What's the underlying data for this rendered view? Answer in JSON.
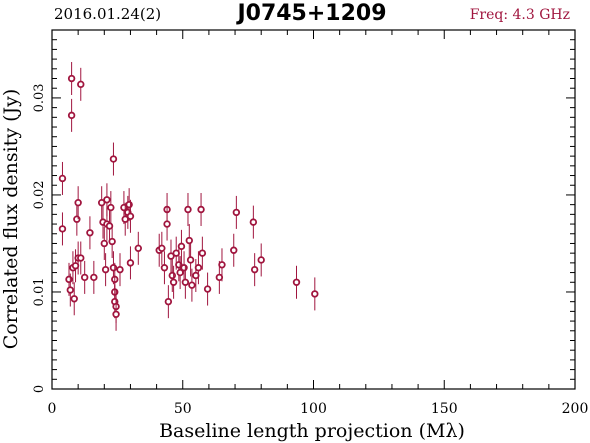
{
  "header": {
    "date": "2016.01.24(2)",
    "source": "J0745+1209",
    "freq": "Freq: 4.3 GHz"
  },
  "colors": {
    "points": "#a0153e",
    "axes": "#000000",
    "background": "#ffffff"
  },
  "chart_data": {
    "type": "scatter",
    "xlabel": "Baseline length projection (Mλ)",
    "ylabel": "Correlated flux density (Jy)",
    "xlim": [
      0,
      200
    ],
    "ylim": [
      0,
      0.037
    ],
    "xticks": [
      "0",
      "50",
      "100",
      "150",
      "200"
    ],
    "yticks": [
      "0",
      "0.01",
      "0.02",
      "0.03"
    ],
    "grid": false,
    "error_bar_jy": 0.0017,
    "points": [
      {
        "x": 4.0,
        "y": 0.0217
      },
      {
        "x": 4.0,
        "y": 0.0165
      },
      {
        "x": 6.5,
        "y": 0.0113
      },
      {
        "x": 7.0,
        "y": 0.0102
      },
      {
        "x": 7.5,
        "y": 0.032
      },
      {
        "x": 7.5,
        "y": 0.0282
      },
      {
        "x": 8.0,
        "y": 0.0125
      },
      {
        "x": 8.5,
        "y": 0.0093
      },
      {
        "x": 9.0,
        "y": 0.0127
      },
      {
        "x": 9.5,
        "y": 0.0175
      },
      {
        "x": 10.0,
        "y": 0.0192
      },
      {
        "x": 10.0,
        "y": 0.0135
      },
      {
        "x": 11.0,
        "y": 0.0314
      },
      {
        "x": 11.0,
        "y": 0.0135
      },
      {
        "x": 12.5,
        "y": 0.0115
      },
      {
        "x": 14.5,
        "y": 0.0161
      },
      {
        "x": 16.0,
        "y": 0.0115
      },
      {
        "x": 19.0,
        "y": 0.0192
      },
      {
        "x": 19.5,
        "y": 0.0172
      },
      {
        "x": 20.0,
        "y": 0.015
      },
      {
        "x": 20.5,
        "y": 0.0123
      },
      {
        "x": 21.0,
        "y": 0.0195
      },
      {
        "x": 21.0,
        "y": 0.017
      },
      {
        "x": 22.0,
        "y": 0.0168
      },
      {
        "x": 22.5,
        "y": 0.0187
      },
      {
        "x": 23.0,
        "y": 0.0152
      },
      {
        "x": 23.5,
        "y": 0.0237
      },
      {
        "x": 23.5,
        "y": 0.0125
      },
      {
        "x": 24.0,
        "y": 0.0113
      },
      {
        "x": 24.0,
        "y": 0.01
      },
      {
        "x": 24.0,
        "y": 0.009
      },
      {
        "x": 24.5,
        "y": 0.0085
      },
      {
        "x": 24.5,
        "y": 0.0077
      },
      {
        "x": 26.0,
        "y": 0.0123
      },
      {
        "x": 27.5,
        "y": 0.0187
      },
      {
        "x": 28.0,
        "y": 0.0175
      },
      {
        "x": 29.0,
        "y": 0.0182
      },
      {
        "x": 29.5,
        "y": 0.019
      },
      {
        "x": 30.0,
        "y": 0.0178
      },
      {
        "x": 30.0,
        "y": 0.013
      },
      {
        "x": 33.0,
        "y": 0.0145
      },
      {
        "x": 41.0,
        "y": 0.0143
      },
      {
        "x": 42.0,
        "y": 0.0145
      },
      {
        "x": 43.0,
        "y": 0.0125
      },
      {
        "x": 44.0,
        "y": 0.0185
      },
      {
        "x": 44.0,
        "y": 0.017
      },
      {
        "x": 44.5,
        "y": 0.009
      },
      {
        "x": 45.5,
        "y": 0.0137
      },
      {
        "x": 46.0,
        "y": 0.0117
      },
      {
        "x": 46.5,
        "y": 0.011
      },
      {
        "x": 47.5,
        "y": 0.014
      },
      {
        "x": 48.5,
        "y": 0.0128
      },
      {
        "x": 49.0,
        "y": 0.012
      },
      {
        "x": 49.5,
        "y": 0.0147
      },
      {
        "x": 50.5,
        "y": 0.0125
      },
      {
        "x": 51.0,
        "y": 0.011
      },
      {
        "x": 52.0,
        "y": 0.0185
      },
      {
        "x": 52.5,
        "y": 0.0153
      },
      {
        "x": 53.0,
        "y": 0.0133
      },
      {
        "x": 53.5,
        "y": 0.0107
      },
      {
        "x": 55.0,
        "y": 0.0117
      },
      {
        "x": 56.0,
        "y": 0.0125
      },
      {
        "x": 57.0,
        "y": 0.0185
      },
      {
        "x": 57.5,
        "y": 0.014
      },
      {
        "x": 59.5,
        "y": 0.0103
      },
      {
        "x": 64.0,
        "y": 0.0115
      },
      {
        "x": 65.0,
        "y": 0.0128
      },
      {
        "x": 69.5,
        "y": 0.0143
      },
      {
        "x": 70.5,
        "y": 0.0182
      },
      {
        "x": 77.0,
        "y": 0.0172
      },
      {
        "x": 77.5,
        "y": 0.0123
      },
      {
        "x": 80.0,
        "y": 0.0133
      },
      {
        "x": 93.5,
        "y": 0.011
      },
      {
        "x": 100.5,
        "y": 0.0098
      }
    ]
  }
}
